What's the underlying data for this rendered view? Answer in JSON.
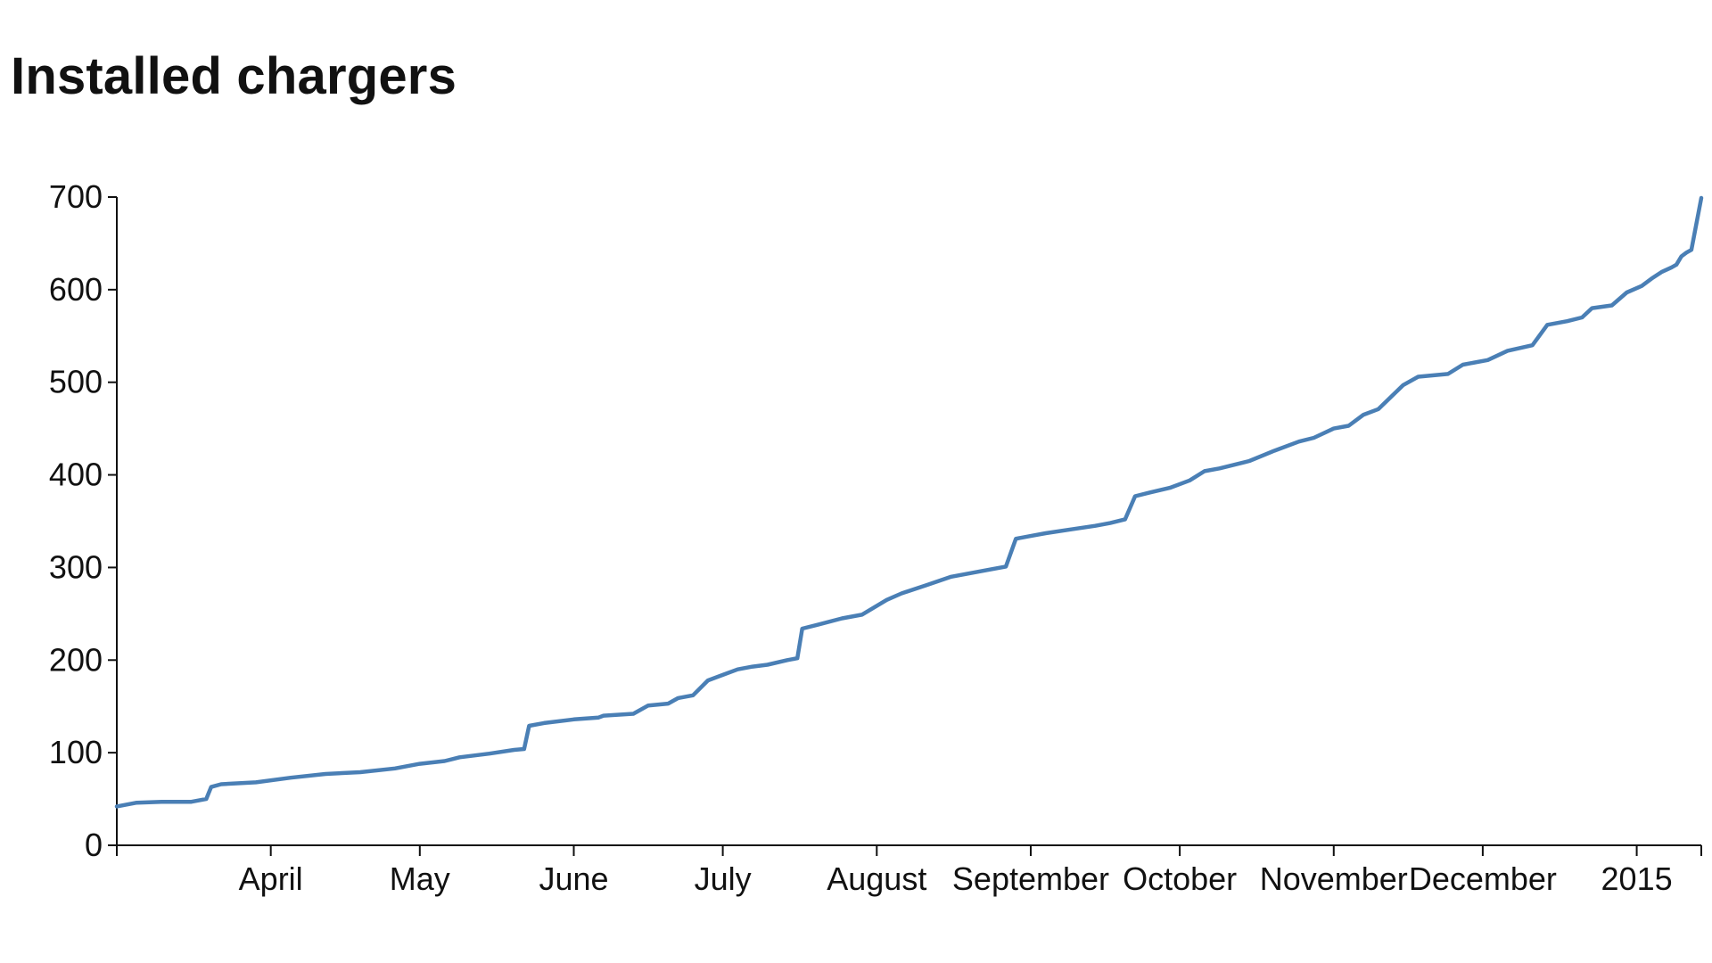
{
  "chart_data": {
    "type": "line",
    "title": "Installed chargers",
    "xlabel": "",
    "ylabel": "",
    "ylim": [
      0,
      700
    ],
    "yticks": [
      0,
      100,
      200,
      300,
      400,
      500,
      600,
      700
    ],
    "xlim": [
      "2014-03-01",
      "2015-01-14"
    ],
    "xticks": [
      {
        "date": "2014-04-01",
        "label": "April"
      },
      {
        "date": "2014-05-01",
        "label": "May"
      },
      {
        "date": "2014-06-01",
        "label": "June"
      },
      {
        "date": "2014-07-01",
        "label": "July"
      },
      {
        "date": "2014-08-01",
        "label": "August"
      },
      {
        "date": "2014-09-01",
        "label": "September"
      },
      {
        "date": "2014-10-01",
        "label": "October"
      },
      {
        "date": "2014-11-01",
        "label": "November"
      },
      {
        "date": "2014-12-01",
        "label": "December"
      },
      {
        "date": "2015-01-01",
        "label": "2015"
      }
    ],
    "grid": false,
    "legend": "none",
    "series": [
      {
        "color": "#4a7fb5",
        "points": [
          [
            "2014-03-01",
            42
          ],
          [
            "2014-03-05",
            46
          ],
          [
            "2014-03-10",
            47
          ],
          [
            "2014-03-16",
            47
          ],
          [
            "2014-03-19",
            50
          ],
          [
            "2014-03-20",
            63
          ],
          [
            "2014-03-22",
            66
          ],
          [
            "2014-03-29",
            68
          ],
          [
            "2014-04-05",
            73
          ],
          [
            "2014-04-12",
            77
          ],
          [
            "2014-04-19",
            79
          ],
          [
            "2014-04-26",
            83
          ],
          [
            "2014-05-01",
            88
          ],
          [
            "2014-05-06",
            91
          ],
          [
            "2014-05-09",
            95
          ],
          [
            "2014-05-15",
            99
          ],
          [
            "2014-05-20",
            103
          ],
          [
            "2014-05-22",
            104
          ],
          [
            "2014-05-23",
            129
          ],
          [
            "2014-05-26",
            132
          ],
          [
            "2014-06-01",
            136
          ],
          [
            "2014-06-06",
            138
          ],
          [
            "2014-06-07",
            140
          ],
          [
            "2014-06-13",
            142
          ],
          [
            "2014-06-16",
            151
          ],
          [
            "2014-06-20",
            153
          ],
          [
            "2014-06-22",
            159
          ],
          [
            "2014-06-25",
            162
          ],
          [
            "2014-06-28",
            178
          ],
          [
            "2014-07-01",
            184
          ],
          [
            "2014-07-04",
            190
          ],
          [
            "2014-07-07",
            193
          ],
          [
            "2014-07-10",
            195
          ],
          [
            "2014-07-14",
            200
          ],
          [
            "2014-07-16",
            202
          ],
          [
            "2014-07-17",
            234
          ],
          [
            "2014-07-20",
            238
          ],
          [
            "2014-07-25",
            245
          ],
          [
            "2014-07-29",
            249
          ],
          [
            "2014-08-03",
            265
          ],
          [
            "2014-08-06",
            272
          ],
          [
            "2014-08-11",
            281
          ],
          [
            "2014-08-16",
            290
          ],
          [
            "2014-08-22",
            296
          ],
          [
            "2014-08-27",
            301
          ],
          [
            "2014-08-29",
            331
          ],
          [
            "2014-09-01",
            334
          ],
          [
            "2014-09-04",
            337
          ],
          [
            "2014-09-09",
            341
          ],
          [
            "2014-09-14",
            345
          ],
          [
            "2014-09-17",
            348
          ],
          [
            "2014-09-20",
            352
          ],
          [
            "2014-09-22",
            377
          ],
          [
            "2014-09-25",
            381
          ],
          [
            "2014-09-29",
            386
          ],
          [
            "2014-10-03",
            394
          ],
          [
            "2014-10-06",
            404
          ],
          [
            "2014-10-09",
            407
          ],
          [
            "2014-10-15",
            415
          ],
          [
            "2014-10-20",
            426
          ],
          [
            "2014-10-25",
            436
          ],
          [
            "2014-10-28",
            440
          ],
          [
            "2014-11-01",
            450
          ],
          [
            "2014-11-04",
            453
          ],
          [
            "2014-11-07",
            465
          ],
          [
            "2014-11-10",
            471
          ],
          [
            "2014-11-15",
            497
          ],
          [
            "2014-11-18",
            506
          ],
          [
            "2014-11-24",
            509
          ],
          [
            "2014-11-27",
            519
          ],
          [
            "2014-12-02",
            524
          ],
          [
            "2014-12-06",
            534
          ],
          [
            "2014-12-11",
            540
          ],
          [
            "2014-12-14",
            562
          ],
          [
            "2014-12-18",
            566
          ],
          [
            "2014-12-21",
            570
          ],
          [
            "2014-12-23",
            580
          ],
          [
            "2014-12-27",
            583
          ],
          [
            "2014-12-30",
            597
          ],
          [
            "2015-01-02",
            604
          ],
          [
            "2015-01-04",
            612
          ],
          [
            "2015-01-06",
            619
          ],
          [
            "2015-01-08",
            624
          ],
          [
            "2015-01-09",
            627
          ],
          [
            "2015-01-10",
            636
          ],
          [
            "2015-01-11",
            640
          ],
          [
            "2015-01-12",
            643
          ],
          [
            "2015-01-14",
            699
          ]
        ]
      }
    ]
  }
}
